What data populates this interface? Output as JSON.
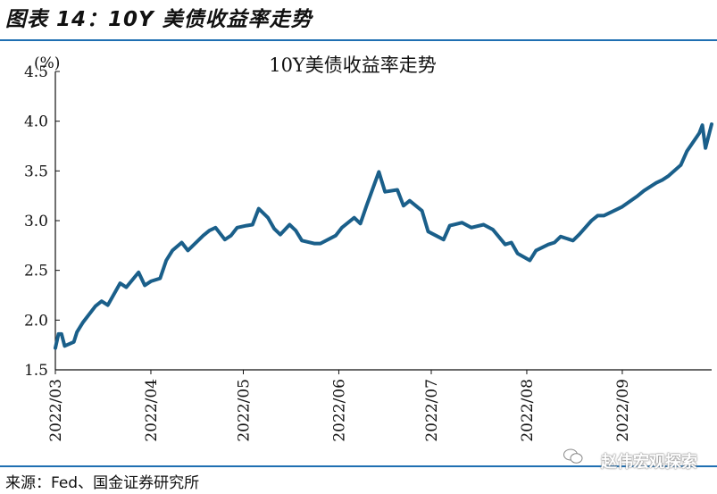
{
  "header": {
    "figure_title": "图表 14：10Y 美债收益率走势"
  },
  "footer": {
    "source": "来源：Fed、国金证券研究所",
    "watermark": "赵伟宏观探索"
  },
  "chart_data": {
    "type": "line",
    "title": "10Y美债收益率走势",
    "unit_label": "(%)",
    "ylim": [
      1.5,
      4.5
    ],
    "yticks": [
      "1.5",
      "2.0",
      "2.5",
      "3.0",
      "3.5",
      "4.0",
      "4.5"
    ],
    "xlim": [
      "2022-03-01",
      "2022-09-30"
    ],
    "xticks": [
      "2022/03",
      "2022/04",
      "2022/05",
      "2022/06",
      "2022/07",
      "2022/08",
      "2022/09"
    ],
    "grid": false,
    "series_color": "#1a5f8a",
    "series": [
      {
        "x": [
          "2022-03-01",
          "2022-03-02",
          "2022-03-03",
          "2022-03-04",
          "2022-03-07",
          "2022-03-08",
          "2022-03-10",
          "2022-03-14",
          "2022-03-16",
          "2022-03-18",
          "2022-03-22",
          "2022-03-24",
          "2022-03-28",
          "2022-03-30",
          "2022-04-01",
          "2022-04-04",
          "2022-04-06",
          "2022-04-08",
          "2022-04-11",
          "2022-04-13",
          "2022-04-18",
          "2022-04-20",
          "2022-04-22",
          "2022-04-25",
          "2022-04-27",
          "2022-04-29",
          "2022-05-02",
          "2022-05-04",
          "2022-05-06",
          "2022-05-09",
          "2022-05-11",
          "2022-05-13",
          "2022-05-16",
          "2022-05-18",
          "2022-05-20",
          "2022-05-24",
          "2022-05-26",
          "2022-05-31",
          "2022-06-02",
          "2022-06-06",
          "2022-06-08",
          "2022-06-10",
          "2022-06-14",
          "2022-06-16",
          "2022-06-20",
          "2022-06-22",
          "2022-06-24",
          "2022-06-28",
          "2022-06-30",
          "2022-07-05",
          "2022-07-07",
          "2022-07-11",
          "2022-07-14",
          "2022-07-18",
          "2022-07-21",
          "2022-07-25",
          "2022-07-27",
          "2022-07-29",
          "2022-08-02",
          "2022-08-04",
          "2022-08-08",
          "2022-08-10",
          "2022-08-12",
          "2022-08-16",
          "2022-08-18",
          "2022-08-22",
          "2022-08-24",
          "2022-08-26",
          "2022-08-30",
          "2022-09-01",
          "2022-09-06",
          "2022-09-08",
          "2022-09-12",
          "2022-09-14",
          "2022-09-16",
          "2022-09-20",
          "2022-09-22",
          "2022-09-26",
          "2022-09-27",
          "2022-09-28",
          "2022-09-30"
        ],
        "y": [
          1.72,
          1.86,
          1.86,
          1.74,
          1.78,
          1.88,
          1.98,
          2.14,
          2.19,
          2.15,
          2.37,
          2.33,
          2.48,
          2.35,
          2.39,
          2.42,
          2.6,
          2.7,
          2.78,
          2.7,
          2.85,
          2.9,
          2.93,
          2.81,
          2.85,
          2.93,
          2.95,
          2.96,
          3.12,
          3.03,
          2.92,
          2.86,
          2.96,
          2.9,
          2.8,
          2.77,
          2.77,
          2.85,
          2.93,
          3.03,
          2.97,
          3.15,
          3.49,
          3.29,
          3.31,
          3.15,
          3.2,
          3.1,
          2.89,
          2.81,
          2.95,
          2.98,
          2.93,
          2.96,
          2.91,
          2.76,
          2.78,
          2.67,
          2.6,
          2.7,
          2.76,
          2.78,
          2.84,
          2.8,
          2.86,
          3.0,
          3.05,
          3.05,
          3.11,
          3.14,
          3.25,
          3.3,
          3.38,
          3.41,
          3.45,
          3.56,
          3.7,
          3.88,
          3.96,
          3.73,
          3.97
        ]
      }
    ]
  }
}
